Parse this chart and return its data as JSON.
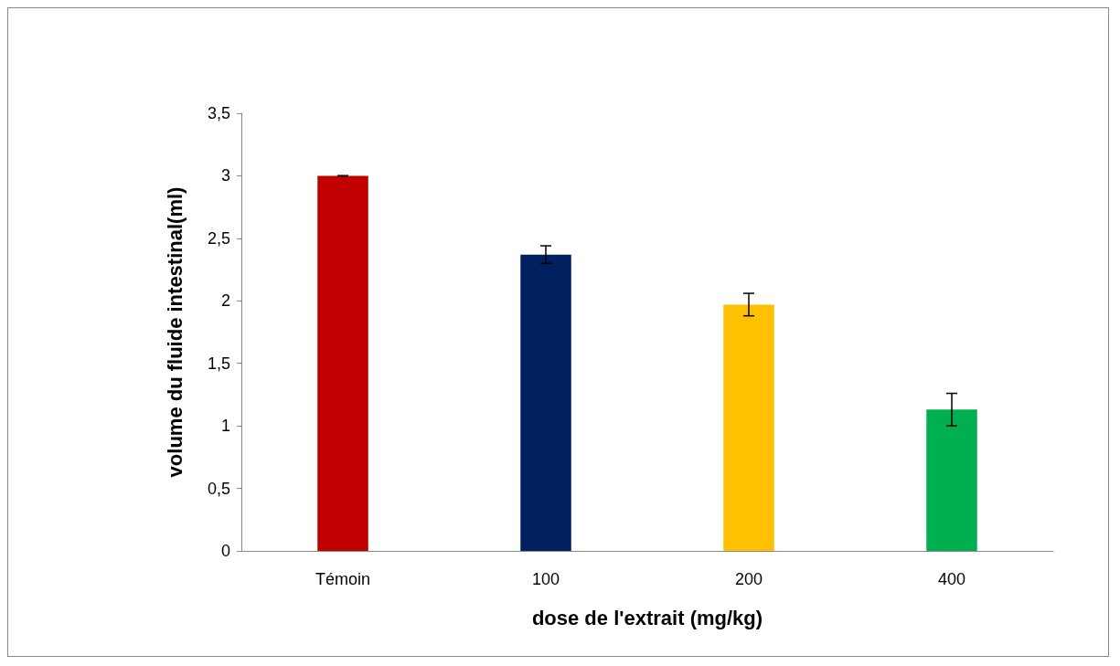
{
  "chart_data": {
    "type": "bar",
    "xlabel": "dose de l'extrait (mg/kg)",
    "ylabel": "volume du fluide intestinal(ml)",
    "categories": [
      "Témoin",
      "100",
      "200",
      "400"
    ],
    "values": [
      3.0,
      2.37,
      1.97,
      1.13
    ],
    "colors": [
      "#c00000",
      "#002060",
      "#ffc000",
      "#00b050"
    ],
    "errors": [
      0,
      0.07,
      0.09,
      0.13
    ],
    "ylim": [
      0,
      3.5
    ],
    "yticks": [
      0,
      {
        "value": 0.5,
        "label": "0,5"
      },
      1,
      {
        "value": 1.5,
        "label": "1,5"
      },
      2,
      {
        "value": 2.5,
        "label": "2,5"
      },
      3,
      {
        "value": 3.5,
        "label": "3,5"
      }
    ],
    "grid": false
  }
}
